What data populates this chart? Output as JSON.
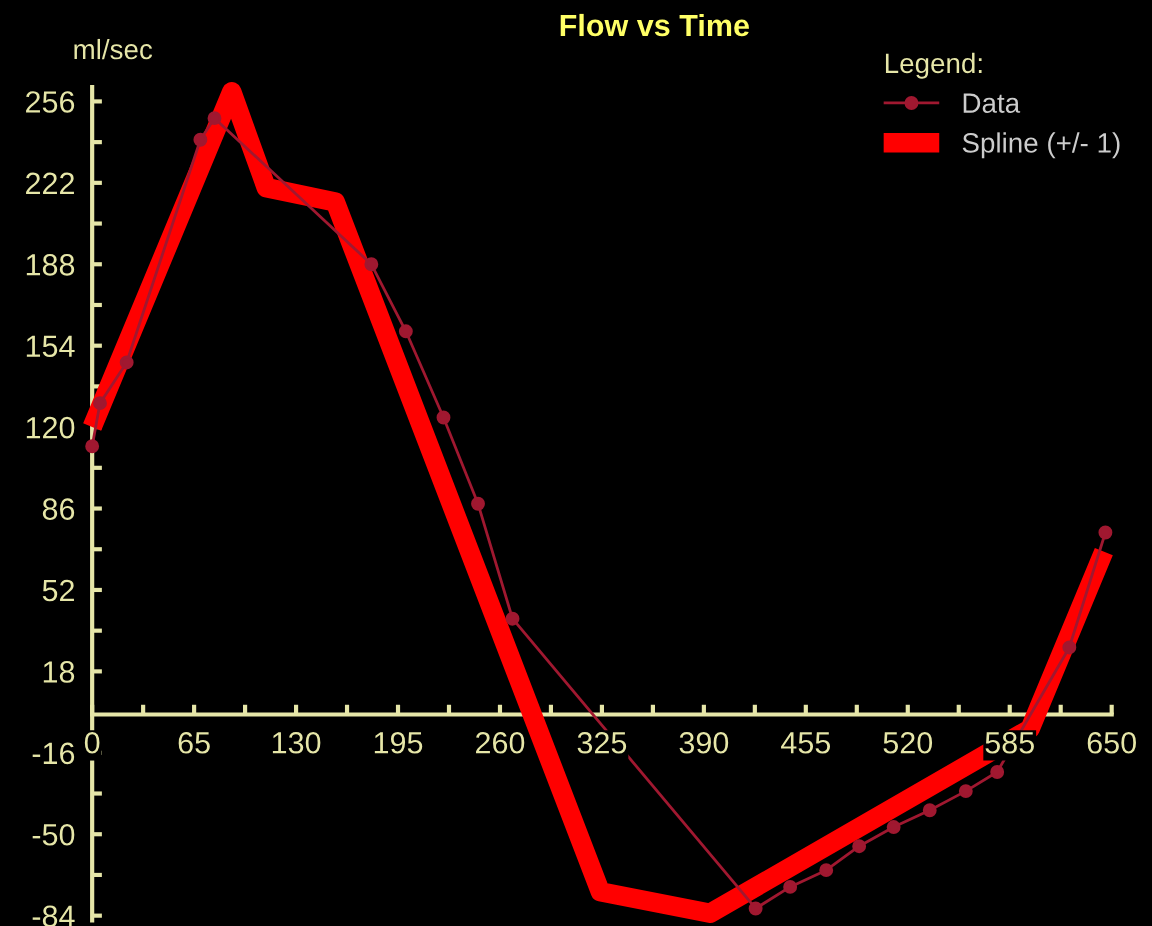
{
  "chart_data": {
    "type": "line",
    "title": "Flow vs Time",
    "ylabel": "ml/sec",
    "legend_title": "Legend:",
    "xlim": [
      0,
      650
    ],
    "ylim": [
      -86,
      262
    ],
    "xticks": [
      0,
      {
        "value": 32.5,
        "label": null
      },
      65,
      {
        "value": 97.5,
        "label": null
      },
      130,
      {
        "value": 162.5,
        "label": null
      },
      195,
      {
        "value": 227.5,
        "label": null
      },
      260,
      {
        "value": 292.5,
        "label": null
      },
      325,
      {
        "value": 357.5,
        "label": null
      },
      390,
      {
        "value": 422.5,
        "label": null
      },
      455,
      {
        "value": 487.5,
        "label": null
      },
      520,
      {
        "value": 552.5,
        "label": null
      },
      585,
      {
        "value": 617.5,
        "label": null
      },
      650
    ],
    "yticks": [
      -84,
      {
        "value": -67,
        "label": null
      },
      -50,
      {
        "value": -33,
        "label": null
      },
      -16,
      18,
      {
        "value": 35,
        "label": null
      },
      52,
      {
        "value": 69,
        "label": null
      },
      86,
      {
        "value": 103,
        "label": null
      },
      120,
      {
        "value": 137,
        "label": null
      },
      154,
      {
        "value": 171,
        "label": null
      },
      188,
      {
        "value": 205,
        "label": null
      },
      222,
      {
        "value": 239,
        "label": null
      },
      256
    ],
    "grid": false,
    "legend": "top right",
    "series": [
      {
        "name": "Data",
        "color": "#a01830",
        "marker": "circle",
        "line_style": "solid",
        "x": [
          0,
          5,
          22,
          69,
          78,
          178,
          200,
          224,
          246,
          268,
          423,
          445,
          468,
          489,
          511,
          534,
          557,
          577,
          623,
          646
        ],
        "values": [
          112,
          130,
          147,
          240,
          249,
          188,
          160,
          124,
          88,
          40,
          -81,
          -72,
          -65,
          -55,
          -47,
          -40,
          -32,
          -24,
          28,
          76
        ]
      },
      {
        "name": "Spline (+/- 1)",
        "color": "#ff0000",
        "marker": "none",
        "line_style": "solid",
        "x": [
          0,
          89,
          111,
          155,
          324,
          394,
          598,
          645
        ],
        "values": [
          120,
          260,
          220,
          214,
          -74,
          -83,
          -6,
          68
        ]
      }
    ]
  }
}
